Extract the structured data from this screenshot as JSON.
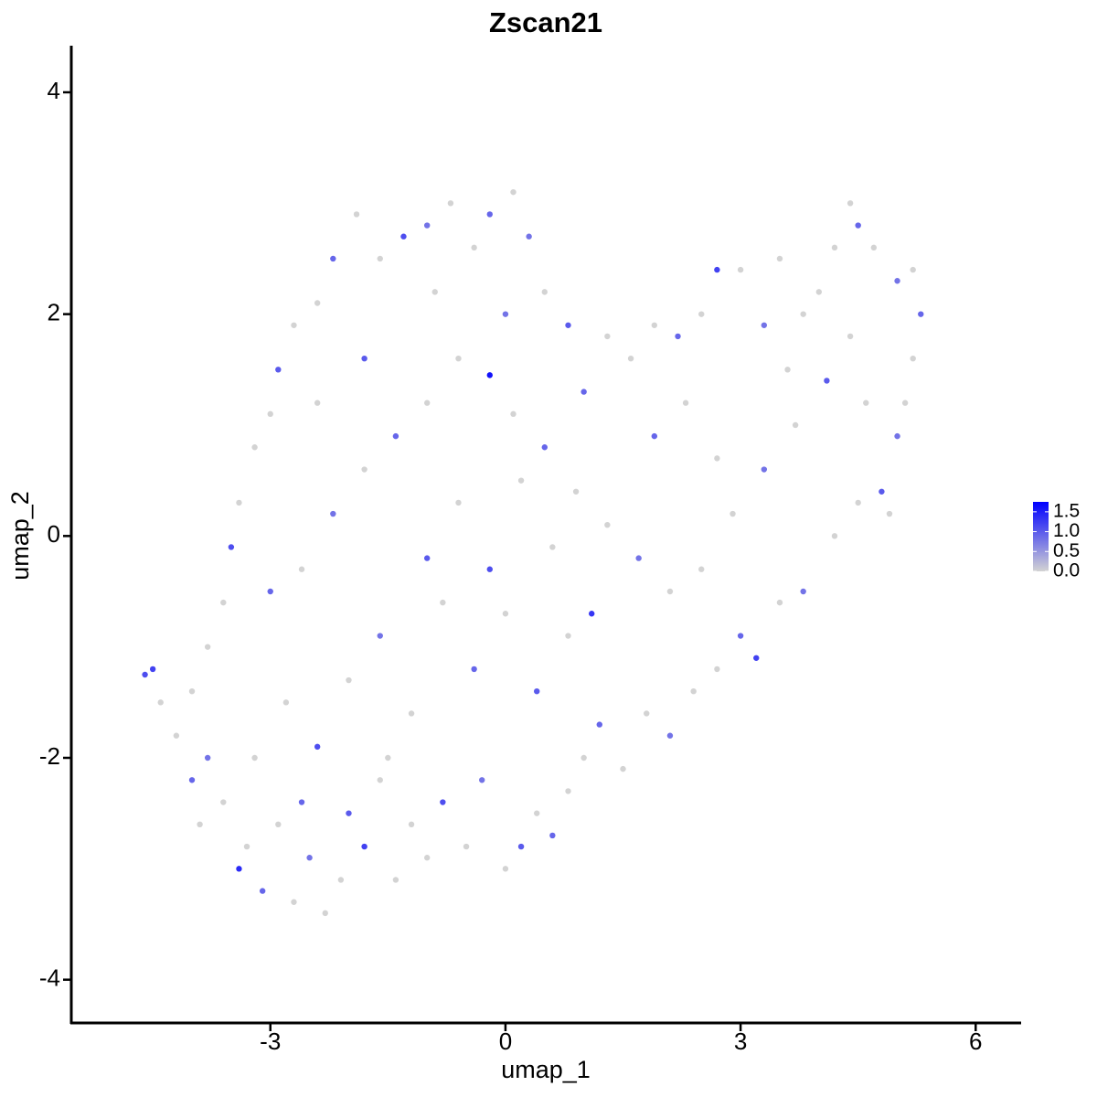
{
  "chart_data": {
    "type": "scatter",
    "title": "Zscan21",
    "x_label": "umap_1",
    "y_label": "umap_2",
    "xlim": [
      -5.54,
      6.58
    ],
    "ylim": [
      -4.39,
      4.42
    ],
    "xticks": [
      -3,
      0,
      3,
      6
    ],
    "yticks": [
      -4,
      -2,
      0,
      2,
      4
    ],
    "grid": false,
    "low_color": "#d3d3d3",
    "high_color": "#0000ff",
    "color_limits": [
      0,
      1.75
    ],
    "color_ticks": [
      {
        "value": 0,
        "label": "0.0"
      },
      0.5,
      {
        "value": 1,
        "label": "1.0"
      },
      1.5
    ],
    "x": [
      -4.6,
      -4.5,
      -4.4,
      -4.2,
      -4.0,
      -3.8,
      -3.9,
      -3.6,
      -3.4,
      -3.3,
      -3.1,
      -2.9,
      -2.7,
      -2.5,
      -2.3,
      -2.1,
      -2.0,
      -1.8,
      -1.6,
      -1.4,
      -1.2,
      -1.0,
      -0.8,
      -0.5,
      -0.3,
      0,
      0.2,
      0.4,
      0.6,
      0.8,
      1.0,
      1.2,
      1.5,
      1.8,
      2.1,
      2.4,
      2.7,
      3.0,
      3.2,
      3.5,
      3.8,
      4.2,
      4.5,
      4.8,
      4.9,
      5.0,
      5.1,
      5.2,
      5.3,
      5.2,
      5.0,
      4.7,
      4.5,
      4.4,
      4.2,
      4.0,
      3.8,
      3.5,
      3.3,
      3.0,
      2.7,
      2.5,
      2.2,
      1.9,
      1.6,
      1.3,
      1.0,
      0.8,
      0.5,
      0.3,
      0.1,
      -0.2,
      -0.4,
      -0.7,
      -1.0,
      -1.3,
      -1.6,
      -1.9,
      -2.2,
      -2.4,
      -2.7,
      -2.9,
      -3.0,
      -3.2,
      -3.4,
      -3.5,
      -3.6,
      -3.8,
      -4.0,
      -3.0,
      -2.6,
      -2.2,
      -1.8,
      -1.4,
      -1.0,
      -0.6,
      -0.2,
      0.1,
      0.5,
      0.9,
      1.3,
      1.7,
      2.1,
      2.5,
      2.9,
      3.3,
      3.7,
      4.1,
      4.4,
      -2.8,
      -2.4,
      -2.0,
      -1.6,
      -1.2,
      -0.8,
      -0.4,
      0,
      0.4,
      0.8,
      1.1,
      -0.6,
      -1.0,
      0.2,
      0.6,
      -0.2,
      -1.5,
      -3.2,
      -2.6,
      1.9,
      2.3,
      2.7,
      3.6,
      4.6,
      -1.8,
      -2.4,
      -0.9,
      0.0
    ],
    "values": [
      -1.25,
      -1.2,
      -1.5,
      -1.8,
      -2.2,
      -2.0,
      -2.6,
      -2.4,
      -3.0,
      -2.8,
      -3.2,
      -2.6,
      -3.3,
      -2.9,
      -3.4,
      -3.1,
      -2.5,
      -2.8,
      -2.2,
      -3.1,
      -2.6,
      -2.9,
      -2.4,
      -2.8,
      -2.2,
      -3.0,
      -2.8,
      -2.5,
      -2.7,
      -2.3,
      -2.0,
      -1.7,
      -2.1,
      -1.6,
      -1.8,
      -1.4,
      -1.2,
      -0.9,
      -1.1,
      -0.6,
      -0.5,
      0,
      0.3,
      0.4,
      0.2,
      0.9,
      1.2,
      1.6,
      2.0,
      2.4,
      2.3,
      2.6,
      2.8,
      3.0,
      2.6,
      2.2,
      2.0,
      2.5,
      1.9,
      2.4,
      2.4,
      2.0,
      1.8,
      1.9,
      1.6,
      1.8,
      1.3,
      1.9,
      2.2,
      2.7,
      3.1,
      2.9,
      2.6,
      3.0,
      2.8,
      2.7,
      2.5,
      2.9,
      2.5,
      2.1,
      1.9,
      1.5,
      1.1,
      0.8,
      0.3,
      -0.1,
      -0.6,
      -1.0,
      -1.4,
      -0.5,
      -0.3,
      0.2,
      0.6,
      0.9,
      1.2,
      1.6,
      1.45,
      1.1,
      0.8,
      0.4,
      0.1,
      -0.2,
      -0.5,
      -0.3,
      0.2,
      0.6,
      1.0,
      1.4,
      1.8,
      -1.5,
      -1.9,
      -1.3,
      -0.9,
      -1.6,
      -0.6,
      -1.2,
      -0.7,
      -1.4,
      -0.9,
      -0.7,
      0.3,
      -0.2,
      0.5,
      -0.1,
      -0.3,
      -2.0,
      -2.0,
      -2.4,
      0.9,
      1.2,
      0.7,
      1.5,
      1.2,
      1.6,
      1.2,
      2.2,
      2.0
    ],
    "expression": [
      1.1,
      1.2,
      0,
      0,
      0.9,
      0.8,
      0,
      0,
      1.4,
      0,
      0.9,
      0,
      0,
      0.8,
      0,
      0,
      1.0,
      1.2,
      0,
      0,
      0,
      0,
      1.1,
      0,
      0.8,
      0,
      1.0,
      0,
      0.9,
      0,
      0,
      0.9,
      0,
      0,
      0.8,
      0,
      0,
      0.9,
      1.2,
      0,
      0.8,
      0,
      0,
      1.0,
      0,
      0.8,
      0,
      0,
      0.9,
      0,
      0.8,
      0,
      0.9,
      0,
      0,
      0,
      0,
      0,
      0.8,
      0,
      1.2,
      0,
      0.9,
      0,
      0,
      0,
      0.9,
      1.0,
      0,
      0.8,
      0,
      0.9,
      0,
      0,
      0.8,
      1.1,
      0,
      0,
      0.9,
      0,
      0,
      1.0,
      0,
      0,
      0,
      1.1,
      0,
      0,
      0,
      0.9,
      0,
      0.8,
      0,
      0.9,
      0,
      0,
      1.6,
      0,
      0.9,
      0,
      0,
      0.8,
      0,
      0,
      0,
      0.8,
      0,
      1.0,
      0,
      0,
      1.1,
      0,
      0.8,
      0,
      0,
      0.9,
      0,
      1.0,
      0,
      1.3,
      0,
      1.0,
      0,
      0,
      1.1,
      0,
      0,
      0.9,
      0.9,
      0,
      0,
      0,
      0,
      1.0,
      0,
      0,
      0.8
    ]
  }
}
